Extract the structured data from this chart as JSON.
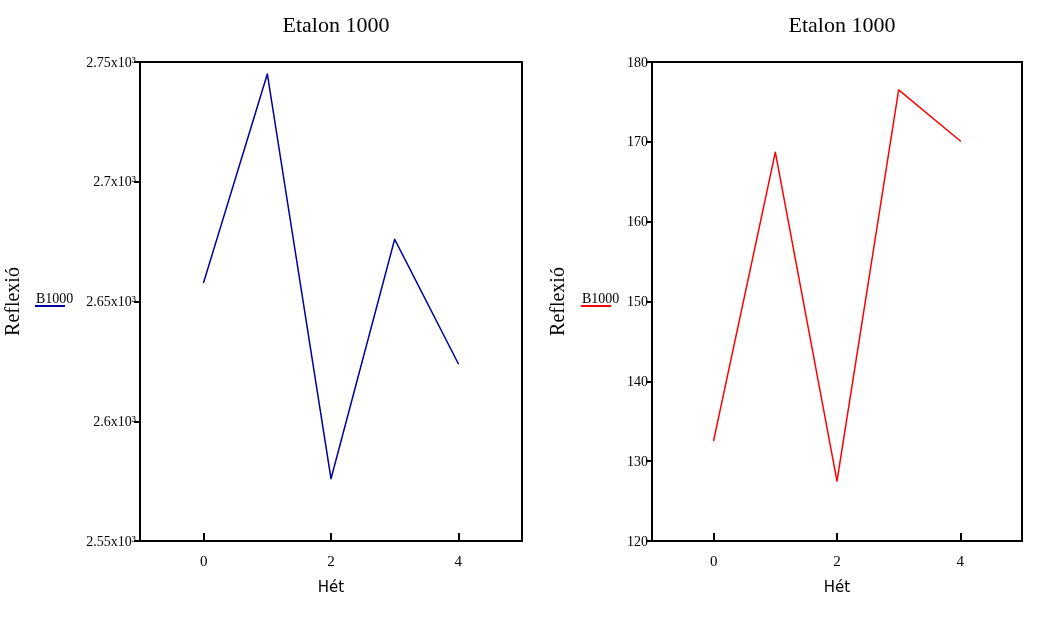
{
  "chart_data": [
    {
      "type": "line",
      "title": "Etalon 1000",
      "xlabel": "Hét",
      "ylabel": "Reflexió",
      "x": [
        0,
        1,
        2,
        3,
        4
      ],
      "series": [
        {
          "name": "B1000",
          "color": "#00009c",
          "values": [
            2658,
            2745,
            2576,
            2676,
            2624
          ]
        }
      ],
      "xlim": [
        -1,
        5
      ],
      "xticks": [
        0,
        2,
        4
      ],
      "ylim": [
        2550,
        2750
      ],
      "yticks": [
        {
          "value": 2550,
          "label": "2.55x10³"
        },
        {
          "value": 2600,
          "label": "2.6x10³"
        },
        {
          "value": 2650,
          "label": "2.65x10³"
        },
        {
          "value": 2700,
          "label": "2.7x10³"
        },
        {
          "value": 2750,
          "label": "2.75x10³"
        }
      ],
      "grid": false,
      "legend": "left",
      "marker": "none",
      "line_style": "solid"
    },
    {
      "type": "line",
      "title": "Etalon 1000",
      "xlabel": "Hét",
      "ylabel": "Reflexió",
      "x": [
        0,
        1,
        2,
        3,
        4
      ],
      "series": [
        {
          "name": "B1000",
          "color": "#ff0000",
          "values": [
            132.6,
            168.7,
            127.5,
            176.5,
            170.1
          ]
        }
      ],
      "xlim": [
        -1,
        5
      ],
      "xticks": [
        0,
        2,
        4
      ],
      "ylim": [
        120,
        180
      ],
      "yticks": [
        120,
        130,
        140,
        150,
        160,
        170,
        180
      ],
      "grid": false,
      "legend": "left",
      "marker": "none",
      "line_style": "solid"
    }
  ]
}
